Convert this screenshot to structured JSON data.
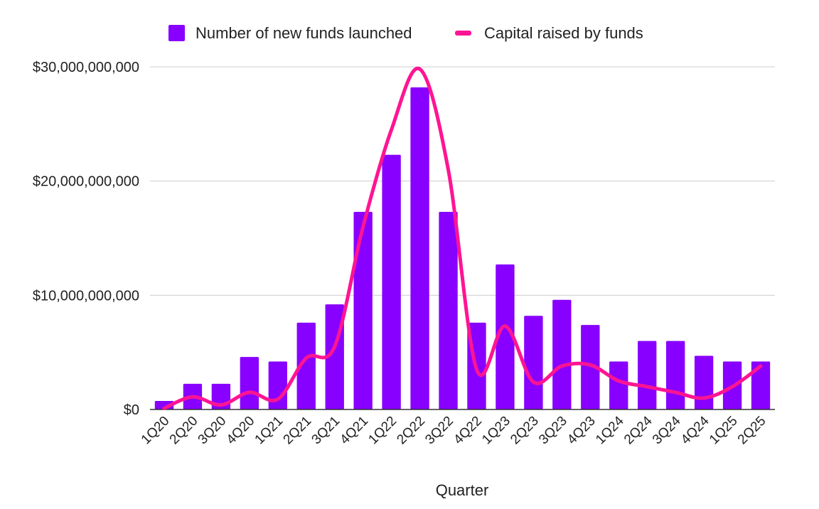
{
  "chart_data": {
    "type": "bar",
    "title": "",
    "xlabel": "Quarter",
    "ylabel": "",
    "ylim": [
      0,
      30000000000
    ],
    "yticks": [
      0,
      10000000000,
      20000000000,
      30000000000
    ],
    "ytick_labels": [
      "$0",
      "$10,000,000,000",
      "$20,000,000,000",
      "$30,000,000,000"
    ],
    "grid": true,
    "legend_position": "top",
    "categories": [
      "1Q20",
      "2Q20",
      "3Q20",
      "4Q20",
      "1Q21",
      "2Q21",
      "3Q21",
      "4Q21",
      "1Q22",
      "2Q22",
      "3Q22",
      "4Q22",
      "1Q23",
      "2Q23",
      "3Q23",
      "4Q23",
      "1Q24",
      "2Q24",
      "3Q24",
      "4Q24",
      "1Q25",
      "2Q25"
    ],
    "series": [
      {
        "name": "Number of new funds launched",
        "kind": "bar",
        "color": "#8800ff",
        "values": [
          750000000,
          2250000000,
          2250000000,
          4600000000,
          4200000000,
          7600000000,
          9200000000,
          17300000000,
          22300000000,
          28200000000,
          17300000000,
          7600000000,
          12700000000,
          8200000000,
          9600000000,
          7400000000,
          4200000000,
          6000000000,
          6000000000,
          4700000000,
          4200000000,
          4200000000
        ]
      },
      {
        "name": "Capital raised by funds",
        "kind": "line",
        "color": "#ff1493",
        "values": [
          100000000,
          1100000000,
          400000000,
          1500000000,
          900000000,
          4500000000,
          5500000000,
          16000000000,
          24500000000,
          29800000000,
          21000000000,
          3500000000,
          7300000000,
          2400000000,
          3800000000,
          3900000000,
          2500000000,
          2000000000,
          1500000000,
          1000000000,
          2000000000,
          3800000000
        ]
      }
    ]
  }
}
